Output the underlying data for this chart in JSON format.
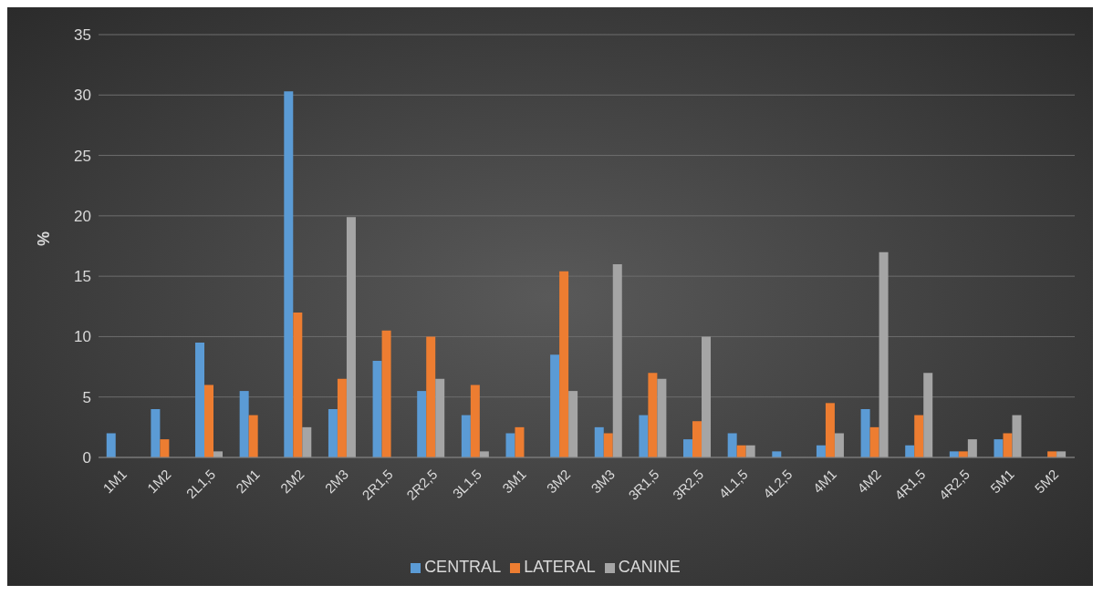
{
  "chart_data": {
    "type": "bar",
    "ylabel": "%",
    "categories": [
      "1M1",
      "1M2",
      "2L1,5",
      "2M1",
      "2M2",
      "2M3",
      "2R1,5",
      "2R2,5",
      "3L1,5",
      "3M1",
      "3M2",
      "3M3",
      "3R1,5",
      "3R2,5",
      "4L1,5",
      "4L2,5",
      "4M1",
      "4M2",
      "4R1,5",
      "4R2,5",
      "5M1",
      "5M2"
    ],
    "series": [
      {
        "name": "CENTRAL",
        "color": "#5b9bd5",
        "values": [
          2,
          4,
          9.5,
          5.5,
          30.3,
          4,
          8,
          5.5,
          3.5,
          2,
          8.5,
          2.5,
          3.5,
          1.5,
          2,
          0.5,
          1,
          4,
          1,
          0.5,
          1.5,
          0
        ]
      },
      {
        "name": "LATERAL",
        "color": "#ed7d31",
        "values": [
          0,
          1.5,
          6,
          3.5,
          12,
          6.5,
          10.5,
          10,
          6,
          2.5,
          15.4,
          2,
          7,
          3,
          1,
          0,
          4.5,
          2.5,
          3.5,
          0.5,
          2,
          0.5
        ]
      },
      {
        "name": "CANINE",
        "color": "#a5a5a5",
        "values": [
          0,
          0,
          0.5,
          0,
          2.5,
          19.9,
          0,
          6.5,
          0.5,
          0,
          5.5,
          16,
          6.5,
          10,
          1,
          0,
          2,
          17,
          7,
          1.5,
          3.5,
          0.5
        ]
      }
    ],
    "ylim": [
      0,
      35
    ],
    "yticks": [
      0,
      5,
      10,
      15,
      20,
      25,
      30,
      35
    ],
    "grid": "y",
    "legend": "bottom"
  }
}
